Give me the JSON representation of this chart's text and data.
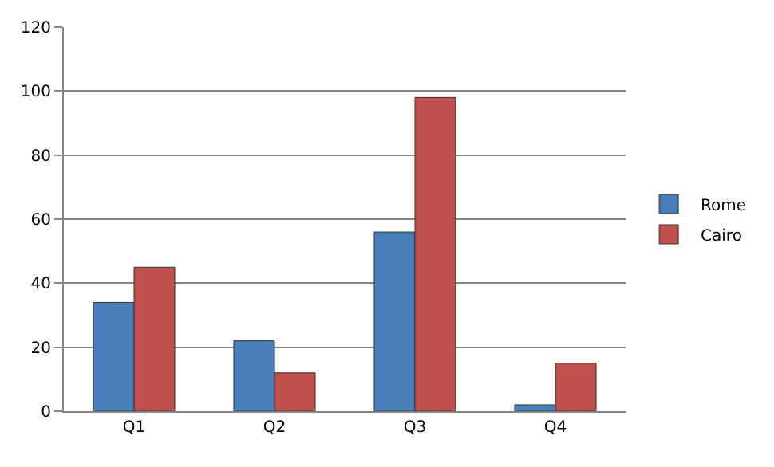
{
  "chart_data": {
    "type": "bar",
    "categories": [
      "Q1",
      "Q2",
      "Q3",
      "Q4"
    ],
    "series": [
      {
        "name": "Rome",
        "color": "#4a7ebb",
        "values": [
          34,
          22,
          56,
          2
        ]
      },
      {
        "name": "Cairo",
        "color": "#c0504d",
        "values": [
          45,
          12,
          98,
          15
        ]
      }
    ],
    "ylim": [
      0,
      120
    ],
    "yticks": [
      0,
      20,
      40,
      60,
      80,
      100,
      120
    ],
    "grid": "y",
    "legend": "right"
  }
}
